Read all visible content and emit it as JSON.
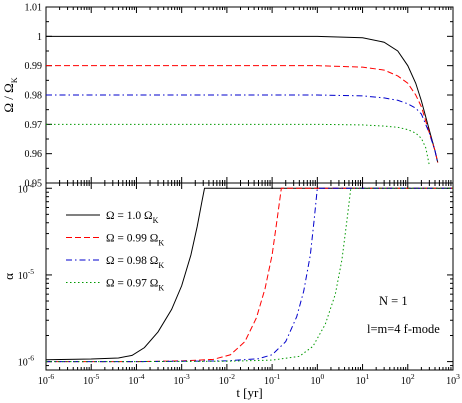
{
  "chart_data": [
    {
      "type": "line",
      "panel": "top",
      "ylabel": "Ω / Ω",
      "ylabel_sub": "K",
      "ylim": [
        0.95,
        1.01
      ],
      "yticks": [
        "0.95",
        "0.96",
        "0.97",
        "0.98",
        "0.99",
        "1",
        "1.01"
      ],
      "xscale": "log",
      "xlim": [
        1e-06,
        1000
      ],
      "series": [
        {
          "omega0": 1.0,
          "style": "solid",
          "color": "#000000",
          "x": [
            1e-06,
            0.001,
            1,
            10,
            30,
            60,
            100,
            150,
            200,
            300,
            400,
            460
          ],
          "y": [
            1.0,
            1.0,
            1.0,
            0.9995,
            0.998,
            0.995,
            0.99,
            0.984,
            0.978,
            0.968,
            0.961,
            0.957
          ]
        },
        {
          "omega0": 0.99,
          "style": "dashed",
          "color": "#ff0000",
          "x": [
            1e-06,
            0.001,
            1,
            10,
            30,
            60,
            100,
            150,
            200,
            300,
            400,
            460
          ],
          "y": [
            0.99,
            0.99,
            0.99,
            0.9895,
            0.9885,
            0.9865,
            0.984,
            0.98,
            0.976,
            0.967,
            0.961,
            0.957
          ]
        },
        {
          "omega0": 0.98,
          "style": "dashdot",
          "color": "#0000cc",
          "x": [
            1e-06,
            0.001,
            1,
            10,
            30,
            60,
            100,
            150,
            200,
            300,
            400,
            455
          ],
          "y": [
            0.98,
            0.98,
            0.98,
            0.9797,
            0.979,
            0.9782,
            0.977,
            0.9755,
            0.9735,
            0.967,
            0.961,
            0.957
          ]
        },
        {
          "omega0": 0.97,
          "style": "dotted",
          "color": "#009900",
          "x": [
            1e-06,
            0.001,
            1,
            10,
            30,
            60,
            100,
            150,
            200,
            250,
            300
          ],
          "y": [
            0.97,
            0.97,
            0.97,
            0.9698,
            0.9694,
            0.969,
            0.9682,
            0.967,
            0.9652,
            0.962,
            0.956
          ]
        }
      ]
    },
    {
      "type": "line",
      "panel": "bottom",
      "xlabel": "t [yr]",
      "ylabel": "α",
      "yscale": "log",
      "ylim": [
        8e-07,
        0.000115
      ],
      "yticks": [
        {
          "base": "10",
          "exp": "-6",
          "value": 1e-06
        },
        {
          "base": "10",
          "exp": "-5",
          "value": 1e-05
        },
        {
          "base": "10",
          "exp": "-4",
          "value": 0.0001
        }
      ],
      "xscale": "log",
      "xlim": [
        1e-06,
        1000
      ],
      "xticks": [
        {
          "base": "10",
          "exp": "-6",
          "value": 1e-06
        },
        {
          "base": "10",
          "exp": "-5",
          "value": 1e-05
        },
        {
          "base": "10",
          "exp": "-4",
          "value": 0.0001
        },
        {
          "base": "10",
          "exp": "-3",
          "value": 0.001
        },
        {
          "base": "10",
          "exp": "-2",
          "value": 0.01
        },
        {
          "base": "10",
          "exp": "-1",
          "value": 0.1
        },
        {
          "base": "10",
          "exp": "0",
          "value": 1
        },
        {
          "base": "10",
          "exp": "1",
          "value": 10
        },
        {
          "base": "10",
          "exp": "2",
          "value": 100
        },
        {
          "base": "10",
          "exp": "3",
          "value": 1000
        }
      ],
      "legend": {
        "placement": "top-left",
        "entries": [
          {
            "prefix": "Ω = 1.0 Ω",
            "sub": "K"
          },
          {
            "prefix": "Ω = 0.99 Ω",
            "sub": "K"
          },
          {
            "prefix": "Ω = 0.98 Ω",
            "sub": "K"
          },
          {
            "prefix": "Ω = 0.97 Ω",
            "sub": "K"
          }
        ]
      },
      "annotations": [
        "N = 1",
        "l=m=4 f-mode"
      ],
      "series": [
        {
          "omega0": 1.0,
          "style": "solid",
          "color": "#000000",
          "x": [
            1e-06,
            1e-05,
            4e-05,
            8e-05,
            0.00015,
            0.0003,
            0.0006,
            0.001,
            0.0016,
            0.0022,
            0.0028,
            0.0032,
            1000
          ],
          "y": [
            1.05e-06,
            1.07e-06,
            1.1e-06,
            1.18e-06,
            1.45e-06,
            2.2e-06,
            4e-06,
            7.5e-06,
            1.7e-05,
            3.6e-05,
            7e-05,
            0.0001,
            0.0001
          ]
        },
        {
          "omega0": 0.99,
          "style": "dashed",
          "color": "#ff0000",
          "x": [
            1e-06,
            0.0001,
            0.001,
            0.005,
            0.012,
            0.025,
            0.045,
            0.07,
            0.1,
            0.13,
            0.16,
            1000
          ],
          "y": [
            1e-06,
            1e-06,
            1.02e-06,
            1.06e-06,
            1.2e-06,
            1.7e-06,
            3.2e-06,
            7e-06,
            1.7e-05,
            4.5e-05,
            0.0001,
            0.0001
          ]
        },
        {
          "omega0": 0.98,
          "style": "dashdot",
          "color": "#0000cc",
          "x": [
            1e-06,
            0.0001,
            0.01,
            0.05,
            0.1,
            0.2,
            0.35,
            0.5,
            0.7,
            0.85,
            1.0,
            1000
          ],
          "y": [
            1e-06,
            1e-06,
            1.02e-06,
            1.08e-06,
            1.2e-06,
            1.7e-06,
            3.3e-06,
            6.5e-06,
            1.7e-05,
            4.3e-05,
            0.0001,
            0.0001
          ]
        },
        {
          "omega0": 0.97,
          "style": "dotted",
          "color": "#009900",
          "x": [
            1e-06,
            0.0001,
            0.01,
            0.1,
            0.4,
            0.8,
            1.5,
            2.5,
            3.5,
            4.5,
            5.5,
            1000
          ],
          "y": [
            1e-06,
            1e-06,
            1.01e-06,
            1.04e-06,
            1.15e-06,
            1.5e-06,
            2.7e-06,
            6e-06,
            1.5e-05,
            4.2e-05,
            0.0001,
            0.0001
          ]
        }
      ]
    }
  ]
}
